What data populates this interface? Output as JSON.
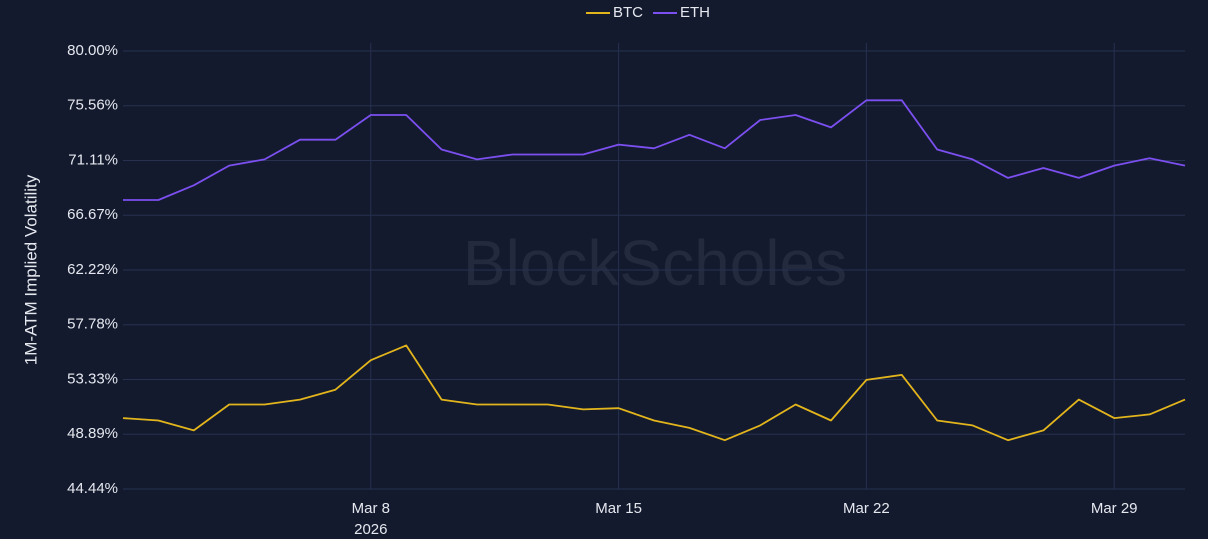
{
  "chart_data": {
    "type": "line",
    "y_label": "1M-ATM Implied Volatility",
    "watermark": "BlockScholes",
    "x": [
      "2026-03-01",
      "2026-03-02",
      "2026-03-03",
      "2026-03-04",
      "2026-03-05",
      "2026-03-06",
      "2026-03-07",
      "2026-03-08",
      "2026-03-09",
      "2026-03-10",
      "2026-03-11",
      "2026-03-12",
      "2026-03-13",
      "2026-03-14",
      "2026-03-15",
      "2026-03-16",
      "2026-03-17",
      "2026-03-18",
      "2026-03-19",
      "2026-03-20",
      "2026-03-21",
      "2026-03-22",
      "2026-03-23",
      "2026-03-24",
      "2026-03-25",
      "2026-03-26",
      "2026-03-27",
      "2026-03-28",
      "2026-03-29",
      "2026-03-30",
      "2026-03-31"
    ],
    "series": [
      {
        "name": "BTC",
        "color": "#e3b51c",
        "values": [
          50.2,
          50.0,
          49.2,
          51.3,
          51.3,
          51.7,
          52.5,
          54.9,
          56.1,
          51.7,
          51.3,
          51.3,
          51.3,
          50.9,
          51.0,
          50.0,
          49.4,
          48.4,
          49.6,
          51.3,
          50.0,
          53.3,
          53.7,
          50.0,
          49.6,
          48.4,
          49.2,
          51.7,
          50.2,
          50.5,
          51.7
        ]
      },
      {
        "name": "ETH",
        "color": "#7c4ff0",
        "values": [
          67.9,
          67.9,
          69.1,
          70.7,
          71.2,
          72.8,
          72.8,
          74.8,
          74.8,
          72.0,
          71.2,
          71.6,
          71.6,
          71.6,
          72.4,
          72.1,
          73.2,
          72.1,
          74.4,
          74.8,
          73.8,
          76.0,
          76.0,
          72.0,
          71.2,
          69.7,
          70.5,
          69.7,
          70.7,
          71.3,
          70.7
        ]
      }
    ],
    "xlim": [
      "2026-03-01",
      "2026-03-31"
    ],
    "xticks": [
      {
        "value": "2026-03-08",
        "label": "Mar 8"
      },
      {
        "value": "2026-03-15",
        "label": "Mar 15"
      },
      {
        "value": "2026-03-22",
        "label": "Mar 22"
      },
      {
        "value": "2026-03-29",
        "label": "Mar 29"
      }
    ],
    "x_year_label": "2026",
    "ylim": [
      44.44,
      80
    ],
    "yticks": [
      {
        "value": 44.44,
        "label": "44.44%"
      },
      {
        "value": 48.89,
        "label": "48.89%"
      },
      {
        "value": 53.33,
        "label": "53.33%"
      },
      {
        "value": 57.78,
        "label": "57.78%"
      },
      {
        "value": 62.22,
        "label": "62.22%"
      },
      {
        "value": 66.67,
        "label": "66.67%"
      },
      {
        "value": 71.11,
        "label": "71.11%"
      },
      {
        "value": 75.56,
        "label": "75.56%"
      },
      {
        "value": 80,
        "label": "80.00%"
      }
    ],
    "grid": true
  }
}
